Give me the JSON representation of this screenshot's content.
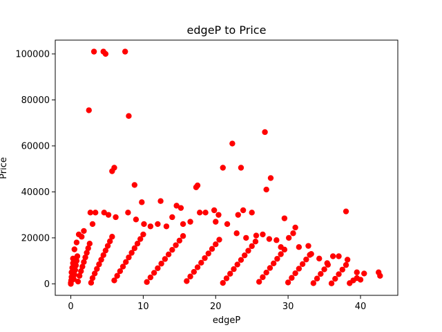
{
  "chart_data": {
    "type": "scatter",
    "title": "edgeP to Price",
    "xlabel": "edgeP",
    "ylabel": "Price",
    "xlim": [
      -2.15,
      45.15
    ],
    "ylim": [
      -5000,
      106000
    ],
    "x_ticks": [
      0,
      10,
      20,
      30,
      40
    ],
    "y_ticks": [
      0,
      20000,
      40000,
      60000,
      80000,
      100000
    ],
    "x_tick_labels": [
      "0",
      "10",
      "20",
      "30",
      "40"
    ],
    "y_tick_labels": [
      "0",
      "20000",
      "40000",
      "60000",
      "80000",
      "100000"
    ],
    "grid": false,
    "marker_color": "#ff0000",
    "series": [
      {
        "points": [
          [
            3.2,
            101000
          ],
          [
            4.5,
            101000
          ],
          [
            4.8,
            100000
          ],
          [
            7.5,
            101000
          ],
          [
            2.5,
            75500
          ],
          [
            8.0,
            73000
          ],
          [
            26.8,
            66000
          ],
          [
            22.3,
            61000
          ],
          [
            6.0,
            50500
          ],
          [
            5.7,
            49000
          ],
          [
            21.0,
            50500
          ],
          [
            23.5,
            50500
          ],
          [
            8.8,
            43000
          ],
          [
            17.5,
            42800
          ],
          [
            17.3,
            42000
          ],
          [
            27.6,
            46000
          ],
          [
            27.0,
            41000
          ],
          [
            9.8,
            35500
          ],
          [
            12.4,
            36000
          ],
          [
            38.0,
            31500
          ],
          [
            29.5,
            28500
          ],
          [
            2.7,
            31000
          ],
          [
            3.4,
            31000
          ],
          [
            4.6,
            31000
          ],
          [
            7.9,
            31000
          ],
          [
            14.6,
            34000
          ],
          [
            15.2,
            33000
          ],
          [
            19.8,
            32000
          ],
          [
            23.8,
            32000
          ],
          [
            25.0,
            31000
          ],
          [
            17.8,
            31000
          ],
          [
            18.6,
            31000
          ],
          [
            20.4,
            30000
          ],
          [
            23.1,
            30000
          ],
          [
            42.5,
            5000
          ],
          [
            42.7,
            3500
          ],
          [
            39.5,
            5000
          ],
          [
            40.5,
            4500
          ],
          [
            38.2,
            10500
          ],
          [
            37.0,
            12000
          ],
          [
            36.2,
            12000
          ],
          [
            35.4,
            9000
          ],
          [
            34.3,
            11000
          ],
          [
            33.2,
            13000
          ],
          [
            32.8,
            16500
          ],
          [
            31.5,
            16000
          ],
          [
            30.7,
            22000
          ],
          [
            31.0,
            24500
          ],
          [
            30.1,
            20000
          ],
          [
            29.0,
            16000
          ],
          [
            28.4,
            19000
          ],
          [
            27.4,
            19500
          ],
          [
            26.5,
            21500
          ],
          [
            25.6,
            21000
          ],
          [
            24.2,
            20000
          ],
          [
            22.9,
            22000
          ],
          [
            21.6,
            26000
          ],
          [
            20.0,
            27000
          ],
          [
            16.5,
            27000
          ],
          [
            15.5,
            26000
          ],
          [
            14.0,
            29000
          ],
          [
            13.2,
            25000
          ],
          [
            12.0,
            26000
          ],
          [
            11.0,
            25000
          ],
          [
            10.1,
            26000
          ],
          [
            9.0,
            28000
          ],
          [
            6.2,
            29000
          ],
          [
            5.2,
            30000
          ],
          [
            3.0,
            26000
          ],
          [
            1.8,
            23000
          ],
          [
            1.1,
            21500
          ],
          [
            0.5,
            15000
          ],
          [
            0.8,
            18000
          ],
          [
            1.5,
            20500
          ],
          [
            0.0,
            0
          ],
          [
            0.0,
            500
          ],
          [
            0.05,
            1500
          ],
          [
            0.1,
            3000
          ],
          [
            0.1,
            5000
          ],
          [
            0.2,
            7000
          ],
          [
            0.3,
            9000
          ],
          [
            0.3,
            11000
          ],
          [
            0.4,
            2000
          ],
          [
            0.5,
            4000
          ],
          [
            0.6,
            6000
          ],
          [
            0.7,
            8000
          ],
          [
            0.8,
            10000
          ],
          [
            0.9,
            12000
          ],
          [
            1.0,
            1000
          ],
          [
            1.2,
            3500
          ],
          [
            1.4,
            5500
          ],
          [
            1.6,
            7500
          ],
          [
            1.8,
            9500
          ],
          [
            2.0,
            11500
          ],
          [
            2.2,
            13500
          ],
          [
            2.4,
            15500
          ],
          [
            2.6,
            17500
          ],
          [
            2.8,
            500
          ],
          [
            3.0,
            2500
          ],
          [
            3.3,
            4500
          ],
          [
            3.6,
            6500
          ],
          [
            3.9,
            8500
          ],
          [
            4.2,
            10500
          ],
          [
            4.5,
            12500
          ],
          [
            4.8,
            14500
          ],
          [
            5.1,
            16500
          ],
          [
            5.4,
            18500
          ],
          [
            5.7,
            20500
          ],
          [
            6.0,
            1500
          ],
          [
            6.4,
            3500
          ],
          [
            6.8,
            5500
          ],
          [
            7.2,
            7500
          ],
          [
            7.6,
            9500
          ],
          [
            8.0,
            11500
          ],
          [
            8.4,
            13500
          ],
          [
            8.8,
            15500
          ],
          [
            9.2,
            17500
          ],
          [
            9.6,
            19500
          ],
          [
            10.0,
            21500
          ],
          [
            10.5,
            800
          ],
          [
            11.0,
            2800
          ],
          [
            11.5,
            4800
          ],
          [
            12.0,
            6800
          ],
          [
            12.5,
            8800
          ],
          [
            13.0,
            10800
          ],
          [
            13.5,
            12800
          ],
          [
            14.0,
            14800
          ],
          [
            14.5,
            16800
          ],
          [
            15.0,
            18800
          ],
          [
            15.5,
            20800
          ],
          [
            16.0,
            1200
          ],
          [
            16.5,
            3200
          ],
          [
            17.0,
            5200
          ],
          [
            17.5,
            7200
          ],
          [
            18.0,
            9200
          ],
          [
            18.5,
            11200
          ],
          [
            19.0,
            13200
          ],
          [
            19.5,
            15200
          ],
          [
            20.0,
            17200
          ],
          [
            20.5,
            19200
          ],
          [
            21.0,
            400
          ],
          [
            21.5,
            2400
          ],
          [
            22.0,
            4400
          ],
          [
            22.5,
            6400
          ],
          [
            23.0,
            8400
          ],
          [
            23.5,
            10400
          ],
          [
            24.0,
            12400
          ],
          [
            24.5,
            14400
          ],
          [
            25.0,
            16400
          ],
          [
            25.5,
            18400
          ],
          [
            26.0,
            900
          ],
          [
            26.5,
            2900
          ],
          [
            27.0,
            4900
          ],
          [
            27.5,
            6900
          ],
          [
            28.0,
            8900
          ],
          [
            28.5,
            10900
          ],
          [
            29.0,
            12900
          ],
          [
            29.5,
            14900
          ],
          [
            30.0,
            600
          ],
          [
            30.5,
            2600
          ],
          [
            31.0,
            4600
          ],
          [
            31.5,
            6600
          ],
          [
            32.0,
            8600
          ],
          [
            32.5,
            10600
          ],
          [
            33.0,
            12600
          ],
          [
            33.5,
            300
          ],
          [
            34.0,
            2300
          ],
          [
            34.5,
            4300
          ],
          [
            35.0,
            6300
          ],
          [
            35.5,
            8300
          ],
          [
            36.0,
            200
          ],
          [
            36.5,
            2200
          ],
          [
            37.0,
            4200
          ],
          [
            37.5,
            6200
          ],
          [
            38.0,
            8200
          ],
          [
            38.5,
            300
          ],
          [
            39.0,
            1500
          ],
          [
            39.5,
            2500
          ],
          [
            40.0,
            1800
          ]
        ]
      }
    ]
  }
}
